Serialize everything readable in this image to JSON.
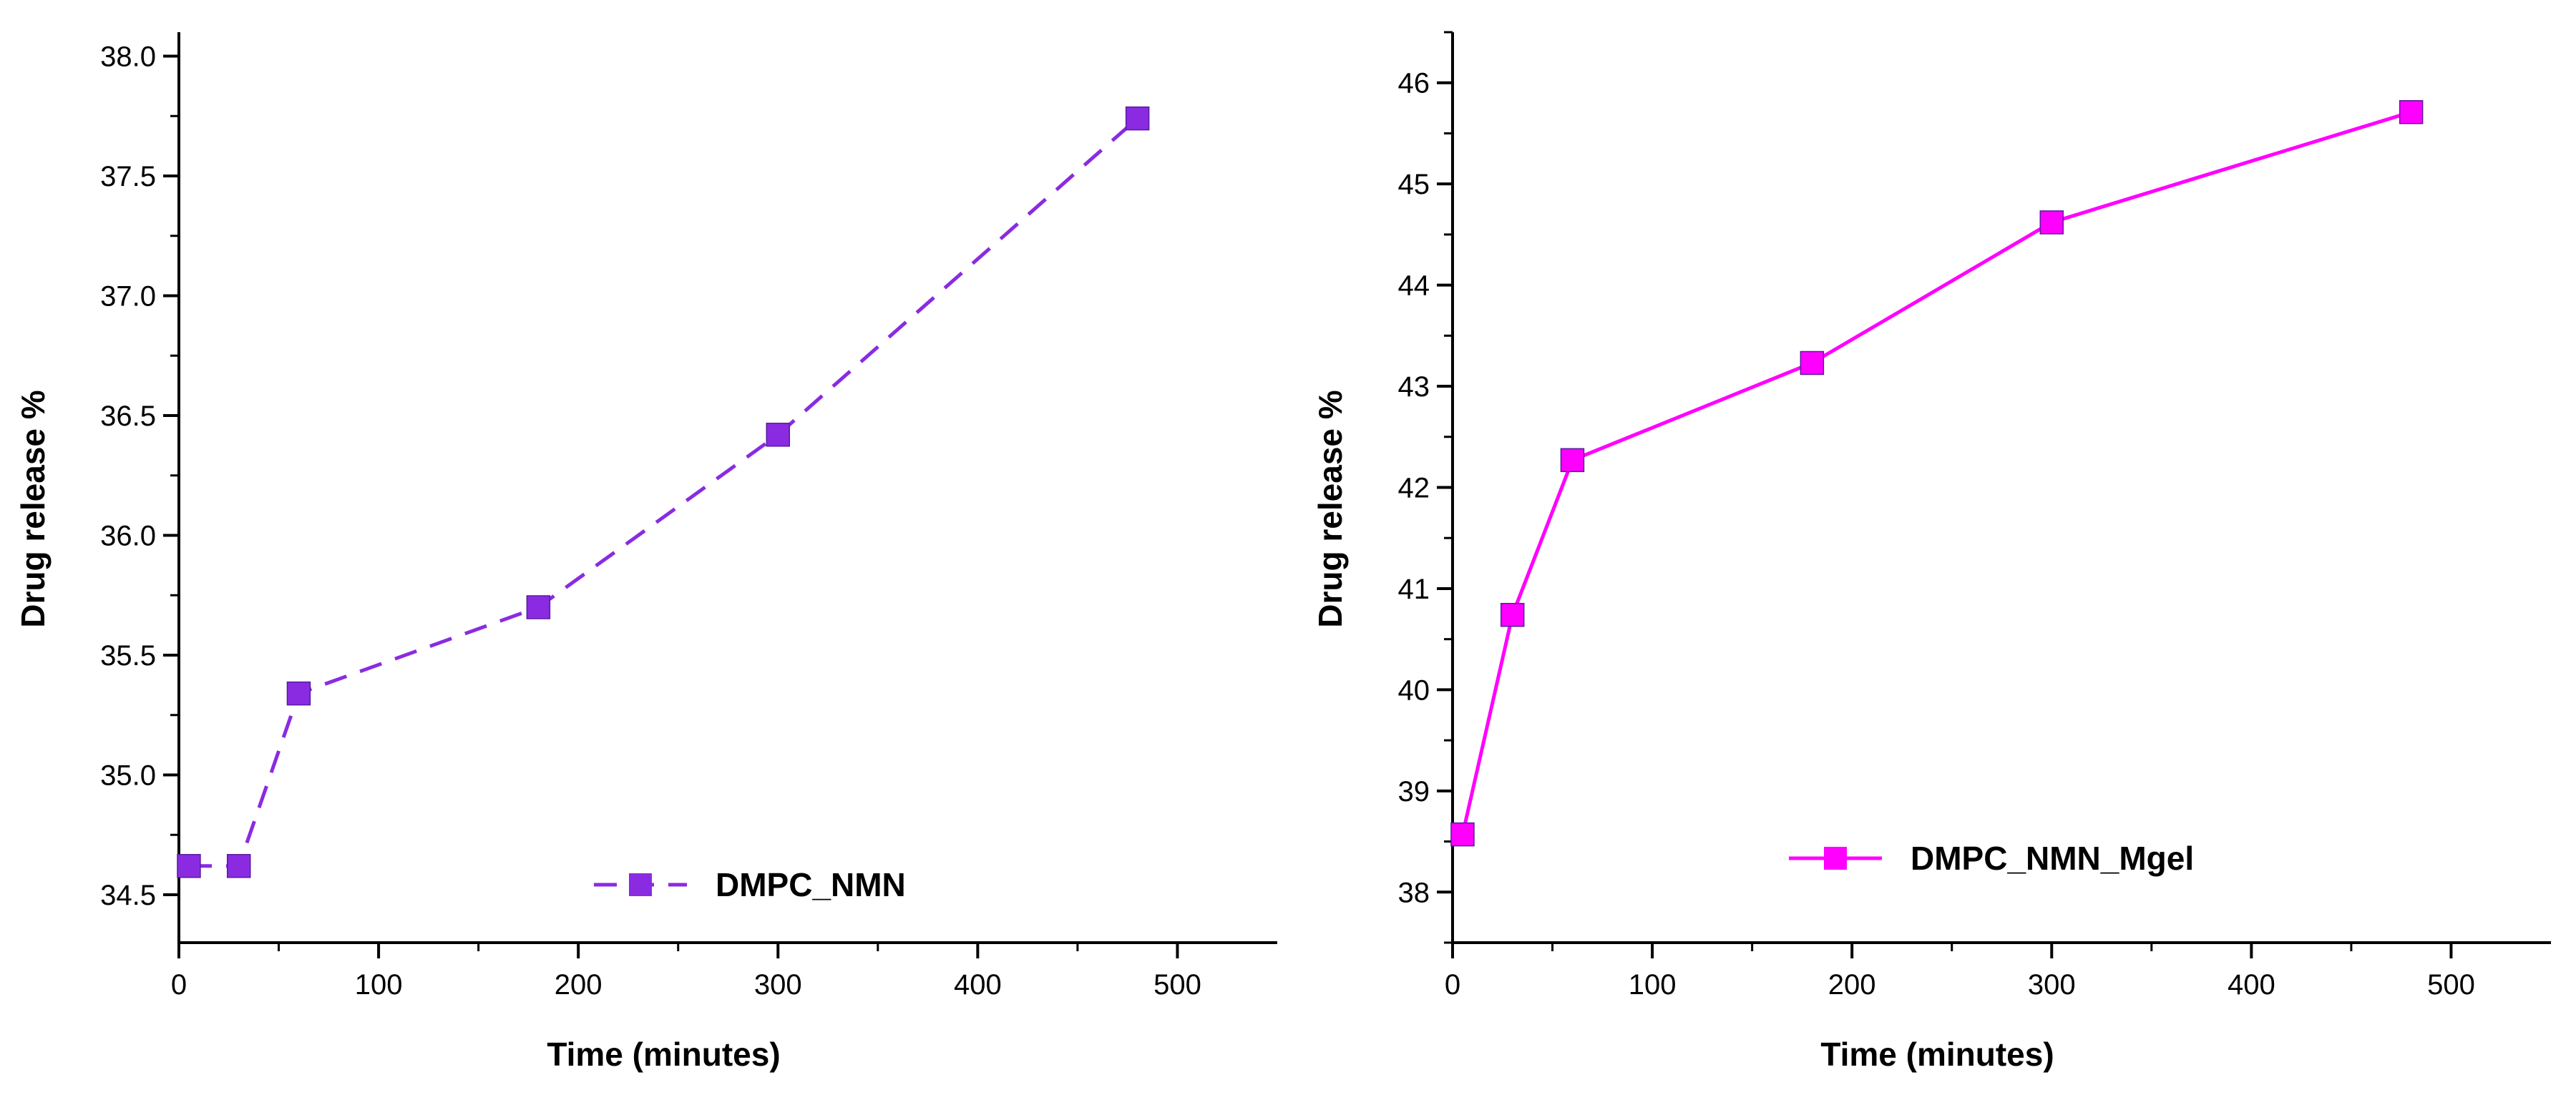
{
  "chart_data": [
    {
      "type": "line",
      "title": "",
      "xlabel": "Time (minutes)",
      "ylabel": "Drug release %",
      "xlim": [
        0,
        550
      ],
      "ylim": [
        34.3,
        38.1
      ],
      "xticks": [
        "0",
        "100",
        "200",
        "300",
        "400",
        "500"
      ],
      "yticks": [
        "34.5",
        "35.0",
        "35.5",
        "36.0",
        "36.5",
        "37.0",
        "37.5",
        "38.0"
      ],
      "grid": false,
      "legend_position": "bottom-center",
      "series": [
        {
          "name": "DMPC_NMN",
          "color": "#8a2be2",
          "line_style": "dashed",
          "marker": "square",
          "x": [
            5,
            30,
            60,
            180,
            300,
            480
          ],
          "y": [
            34.62,
            34.62,
            35.34,
            35.7,
            36.42,
            37.74
          ]
        }
      ]
    },
    {
      "type": "line",
      "title": "",
      "xlabel": "Time (minutes)",
      "ylabel": "Drug release %",
      "xlim": [
        0,
        550
      ],
      "ylim": [
        37.5,
        46.5
      ],
      "xticks": [
        "0",
        "100",
        "200",
        "300",
        "400",
        "500"
      ],
      "yticks": [
        "38",
        "39",
        "40",
        "41",
        "42",
        "43",
        "44",
        "45",
        "46"
      ],
      "grid": false,
      "legend_position": "bottom-right",
      "series": [
        {
          "name": "DMPC_NMN_Mgel",
          "color": "#ff00ff",
          "line_style": "solid",
          "marker": "square",
          "x": [
            5,
            30,
            60,
            180,
            300,
            480
          ],
          "y": [
            38.57,
            40.74,
            42.27,
            43.23,
            44.62,
            45.71
          ]
        }
      ]
    }
  ]
}
